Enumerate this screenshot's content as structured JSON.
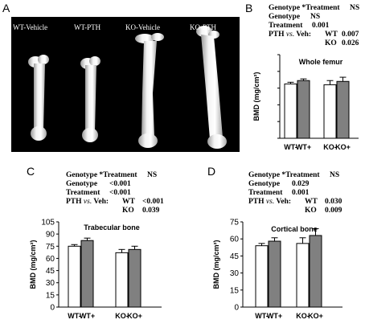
{
  "panels": {
    "A": {
      "letter": "A",
      "labels": [
        "WT-Vehicle",
        "WT-PTH",
        "KO-Vehicle",
        "KO-PTH"
      ]
    },
    "B": {
      "letter": "B",
      "stats": {
        "l1": "Genotype *Treatment",
        "l1v": "NS",
        "l2": "Genotype",
        "l2v": "NS",
        "l3": "Treatment",
        "l3v": "0.001",
        "l4a": "PTH",
        "l4b": "vs.",
        "l4c": "Veh:",
        "l4g": "WT",
        "l4v": "0.007",
        "l5g": "KO",
        "l5v": "0.026"
      }
    },
    "C": {
      "letter": "C",
      "stats": {
        "l1": "Genotype *Treatment",
        "l1v": "NS",
        "l2": "Genotype",
        "l2v": "<0.001",
        "l3": "Treatment",
        "l3v": "<0.001",
        "l4a": "PTH",
        "l4b": "vs.",
        "l4c": "Veh:",
        "l4g": "WT",
        "l4v": "<0.001",
        "l5g": "KO",
        "l5v": "0.039"
      }
    },
    "D": {
      "letter": "D",
      "stats": {
        "l1": "Genotype *Treatment",
        "l1v": "NS",
        "l2": "Genotype",
        "l2v": "0.029",
        "l3": "Treatment",
        "l3v": "0.001",
        "l4a": "PTH",
        "l4b": "vs.",
        "l4c": "Veh:",
        "l4g": "WT",
        "l4v": "0.030",
        "l5g": "KO",
        "l5v": "0.009"
      }
    }
  },
  "colors": {
    "vehicle_bar": "#ffffff",
    "pth_bar": "#808080",
    "xray_background": "#000000"
  },
  "chart_data": [
    {
      "id": "B",
      "type": "bar",
      "title": "Whole femur",
      "ylabel": "BMD (mg/cm²)",
      "ylim": [
        0,
        100
      ],
      "yticks": [],
      "groups": [
        {
          "bars": [
            {
              "label": "WT-",
              "value": 65,
              "err": 2,
              "fill": "#ffffff"
            },
            {
              "label": "WT+",
              "value": 69,
              "err": 2,
              "fill": "#808080"
            }
          ]
        },
        {
          "bars": [
            {
              "label": "KO-",
              "value": 64,
              "err": 5,
              "fill": "#ffffff"
            },
            {
              "label": "KO+",
              "value": 68,
              "err": 5,
              "fill": "#808080"
            }
          ]
        }
      ]
    },
    {
      "id": "C",
      "type": "bar",
      "title": "Trabecular bone",
      "ylabel": "BMD (mg/cm²)",
      "ylim": [
        0,
        105
      ],
      "yticks": [
        "0",
        "15",
        "30",
        "45",
        "60",
        "75",
        "90",
        "105"
      ],
      "groups": [
        {
          "bars": [
            {
              "label": "WT-",
              "value": 75,
              "err": 2,
              "fill": "#ffffff"
            },
            {
              "label": "WT+",
              "value": 82,
              "err": 3,
              "fill": "#808080"
            }
          ]
        },
        {
          "bars": [
            {
              "label": "KO-",
              "value": 67,
              "err": 4,
              "fill": "#ffffff"
            },
            {
              "label": "KO+",
              "value": 71,
              "err": 4,
              "fill": "#808080"
            }
          ]
        }
      ]
    },
    {
      "id": "D",
      "type": "bar",
      "title": "Cortical bone",
      "ylabel": "BMD (mg/cm²)",
      "ylim": [
        0,
        75
      ],
      "yticks": [
        "0",
        "15",
        "30",
        "45",
        "60",
        "75"
      ],
      "groups": [
        {
          "bars": [
            {
              "label": "WT-",
              "value": 54,
              "err": 2,
              "fill": "#ffffff"
            },
            {
              "label": "WT+",
              "value": 58,
              "err": 3,
              "fill": "#808080"
            }
          ]
        },
        {
          "bars": [
            {
              "label": "KO-",
              "value": 56,
              "err": 5,
              "fill": "#ffffff"
            },
            {
              "label": "KO+",
              "value": 63,
              "err": 6,
              "fill": "#808080"
            }
          ]
        }
      ]
    }
  ]
}
